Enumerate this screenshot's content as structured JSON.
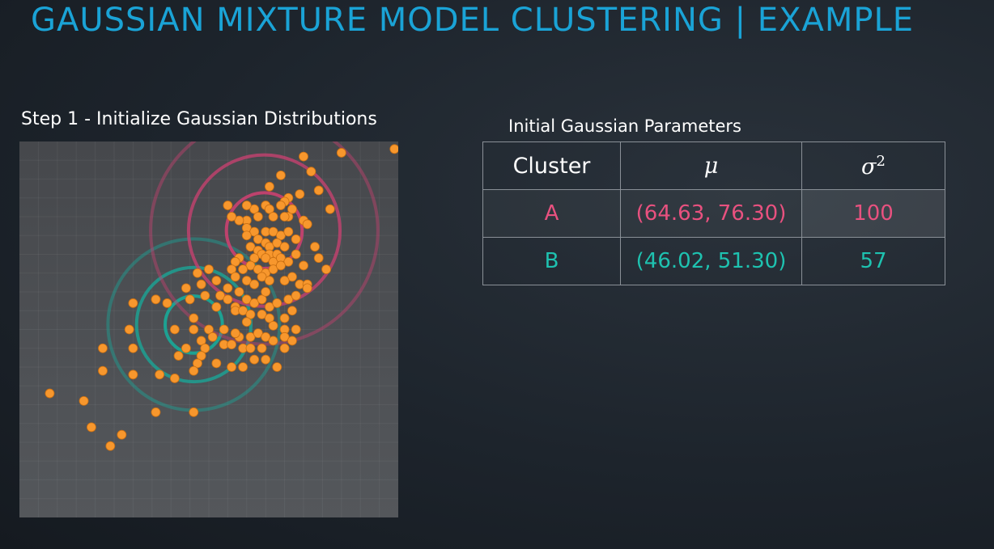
{
  "title": "GAUSSIAN MIXTURE MODEL CLUSTERING | EXAMPLE",
  "step_label": "Step 1 - Initialize Gaussian Distributions",
  "table": {
    "caption": "Initial Gaussian Parameters",
    "headers": {
      "cluster": "Cluster",
      "mu": "μ",
      "sigma_base": "σ",
      "sigma_exp": "2"
    },
    "rows": [
      {
        "cluster": "A",
        "mu": "(64.63, 76.30)",
        "sigma2": "100",
        "color": "#e8517f"
      },
      {
        "cluster": "B",
        "mu": "(46.02, 51.30)",
        "sigma2": "57",
        "color": "#1ec2b0"
      }
    ]
  },
  "colors": {
    "title": "#1aa3d6",
    "cluster_a": "#c4416f",
    "cluster_b": "#1aa596",
    "points": "#f7972d",
    "plot_bg": "#4a4d52"
  },
  "chart_data": {
    "type": "scatter",
    "xlim": [
      0,
      100
    ],
    "ylim": [
      0,
      100
    ],
    "grid": true,
    "points": [
      [
        75,
        96
      ],
      [
        85,
        97
      ],
      [
        99,
        98
      ],
      [
        77,
        92
      ],
      [
        69,
        91
      ],
      [
        79,
        87
      ],
      [
        66,
        88
      ],
      [
        74,
        86
      ],
      [
        71,
        85
      ],
      [
        82,
        82
      ],
      [
        70,
        84
      ],
      [
        69,
        83
      ],
      [
        65,
        83
      ],
      [
        66,
        82
      ],
      [
        55,
        83
      ],
      [
        62,
        82
      ],
      [
        60,
        83
      ],
      [
        67,
        80
      ],
      [
        71,
        80
      ],
      [
        72,
        82
      ],
      [
        63,
        80
      ],
      [
        70,
        80
      ],
      [
        60,
        79
      ],
      [
        75,
        79
      ],
      [
        76,
        78
      ],
      [
        58,
        79
      ],
      [
        56,
        80
      ],
      [
        60,
        77
      ],
      [
        62,
        76
      ],
      [
        65,
        76
      ],
      [
        67,
        76
      ],
      [
        69,
        75
      ],
      [
        71,
        76
      ],
      [
        73,
        74
      ],
      [
        60,
        75
      ],
      [
        63,
        74
      ],
      [
        65,
        73
      ],
      [
        66,
        72
      ],
      [
        68,
        73
      ],
      [
        70,
        72
      ],
      [
        61,
        72
      ],
      [
        63,
        71
      ],
      [
        64,
        70
      ],
      [
        66,
        70
      ],
      [
        68,
        70
      ],
      [
        62,
        69
      ],
      [
        65,
        69
      ],
      [
        67,
        68
      ],
      [
        69,
        69
      ],
      [
        71,
        68
      ],
      [
        58,
        69
      ],
      [
        57,
        68
      ],
      [
        61,
        67
      ],
      [
        63,
        66
      ],
      [
        65,
        65
      ],
      [
        67,
        66
      ],
      [
        69,
        67
      ],
      [
        59,
        66
      ],
      [
        64,
        64
      ],
      [
        66,
        63
      ],
      [
        72,
        64
      ],
      [
        70,
        63
      ],
      [
        56,
        66
      ],
      [
        57,
        64
      ],
      [
        60,
        63
      ],
      [
        62,
        62
      ],
      [
        74,
        62
      ],
      [
        73,
        70
      ],
      [
        78,
        72
      ],
      [
        79,
        69
      ],
      [
        81,
        66
      ],
      [
        75,
        67
      ],
      [
        47,
        65
      ],
      [
        50,
        66
      ],
      [
        52,
        63
      ],
      [
        48,
        62
      ],
      [
        55,
        61
      ],
      [
        58,
        60
      ],
      [
        44,
        61
      ],
      [
        45,
        58
      ],
      [
        49,
        59
      ],
      [
        53,
        59
      ],
      [
        60,
        58
      ],
      [
        62,
        57
      ],
      [
        64,
        58
      ],
      [
        66,
        56
      ],
      [
        68,
        57
      ],
      [
        71,
        58
      ],
      [
        73,
        59
      ],
      [
        76,
        62
      ],
      [
        65,
        60
      ],
      [
        55,
        58
      ],
      [
        57,
        56
      ],
      [
        52,
        56
      ],
      [
        57,
        55
      ],
      [
        59,
        55
      ],
      [
        61,
        54
      ],
      [
        64,
        54
      ],
      [
        66,
        53
      ],
      [
        70,
        53
      ],
      [
        72,
        55
      ],
      [
        76,
        61
      ],
      [
        60,
        52
      ],
      [
        67,
        51
      ],
      [
        70,
        50
      ],
      [
        73,
        50
      ],
      [
        61,
        48
      ],
      [
        63,
        49
      ],
      [
        65,
        48
      ],
      [
        67,
        47
      ],
      [
        70,
        48
      ],
      [
        72,
        47
      ],
      [
        58,
        48
      ],
      [
        54,
        46
      ],
      [
        56,
        46
      ],
      [
        59,
        45
      ],
      [
        61,
        45
      ],
      [
        50,
        50
      ],
      [
        54,
        50
      ],
      [
        57,
        49
      ],
      [
        46,
        53
      ],
      [
        46,
        50
      ],
      [
        48,
        47
      ],
      [
        41,
        50
      ],
      [
        39,
        57
      ],
      [
        36,
        58
      ],
      [
        30,
        57
      ],
      [
        29,
        50
      ],
      [
        30,
        45
      ],
      [
        44,
        45
      ],
      [
        49,
        45
      ],
      [
        51,
        48
      ],
      [
        48,
        43
      ],
      [
        42,
        43
      ],
      [
        47,
        41
      ],
      [
        64,
        45
      ],
      [
        70,
        45
      ],
      [
        68,
        40
      ],
      [
        65,
        42
      ],
      [
        62,
        42
      ],
      [
        59,
        40
      ],
      [
        56,
        40
      ],
      [
        52,
        41
      ],
      [
        46,
        39
      ],
      [
        37,
        38
      ],
      [
        30,
        38
      ],
      [
        22,
        45
      ],
      [
        22,
        39
      ],
      [
        17,
        31
      ],
      [
        24,
        19
      ],
      [
        19,
        24
      ],
      [
        27,
        22
      ],
      [
        46,
        28
      ],
      [
        36,
        28
      ],
      [
        41,
        37
      ],
      [
        8,
        33
      ]
    ],
    "clusters": [
      {
        "name": "A",
        "center": [
          64.63,
          76.3
        ],
        "sigma2": 100
      },
      {
        "name": "B",
        "center": [
          46.02,
          51.3
        ],
        "sigma2": 57
      }
    ]
  }
}
